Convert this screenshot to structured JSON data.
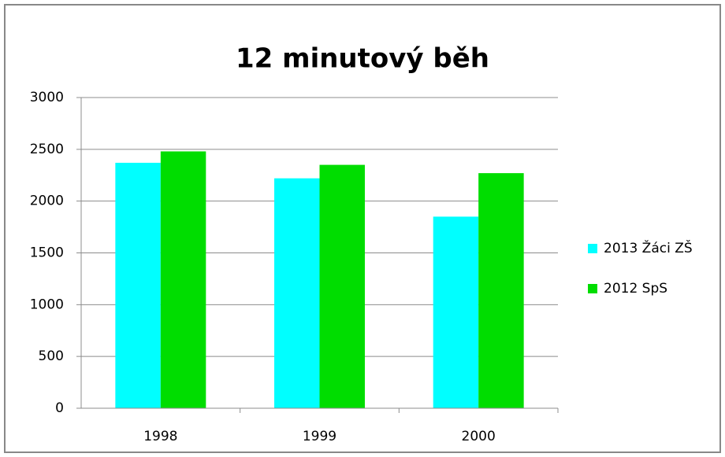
{
  "chart_data": {
    "type": "bar",
    "title": "12 minutový běh",
    "categories": [
      "1998",
      "1999",
      "2000"
    ],
    "series": [
      {
        "name": "2013 Žáci ZŠ",
        "color": "#00ffff",
        "values": [
          2370,
          2220,
          1850
        ]
      },
      {
        "name": "2012 SpS",
        "color": "#00dd00",
        "values": [
          2480,
          2350,
          2270
        ]
      }
    ],
    "ylim": [
      0,
      3000
    ],
    "yticks": [
      0,
      500,
      1000,
      1500,
      2000,
      2500,
      3000
    ],
    "grid": true,
    "legend": "right"
  }
}
